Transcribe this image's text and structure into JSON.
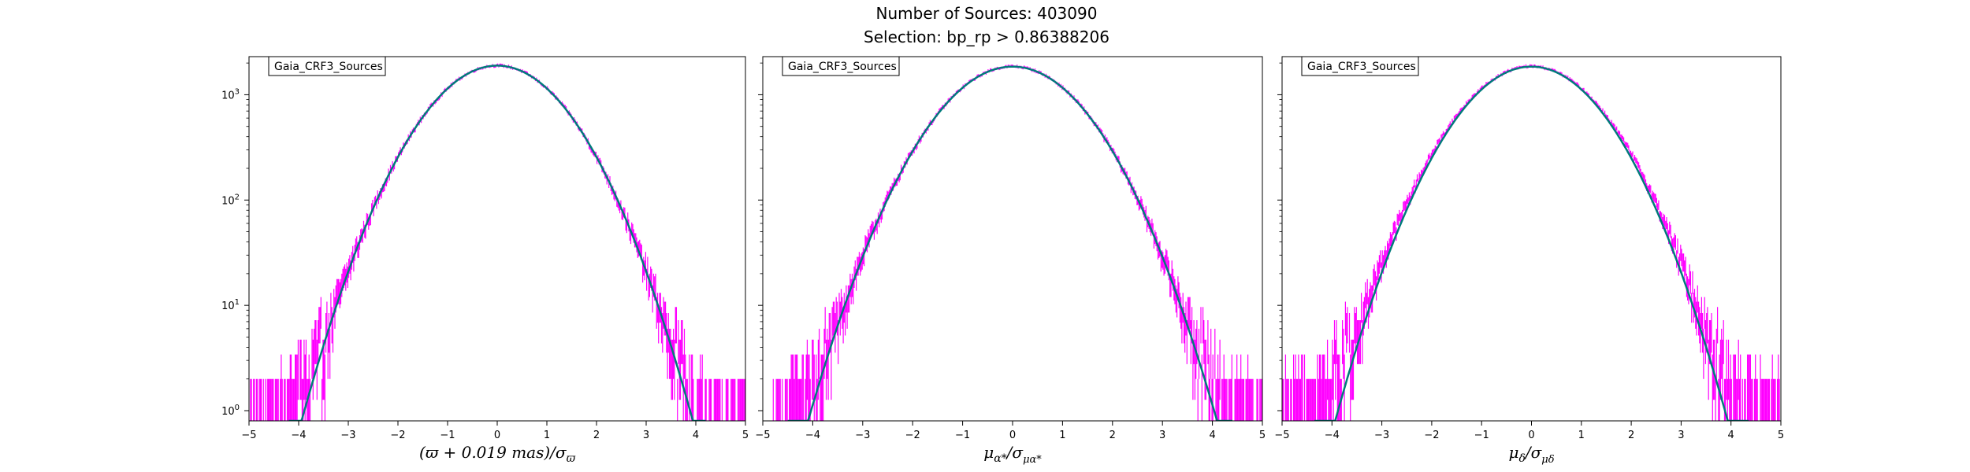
{
  "figure": {
    "title_line1": "Number of Sources: 403090",
    "title_line2": "Selection: bp_rp > 0.86388206"
  },
  "colors": {
    "histogram": "#ff00ff",
    "fit": "#007b7b",
    "axes": "#000000"
  },
  "chart_data": [
    {
      "type": "line",
      "legend": "Gaia_CRF3_Sources",
      "xlabel": "(ϖ + 0.019 mas)/σϖ",
      "xlabel_parts": {
        "main": "(ϖ + 0.019 mas)/σ",
        "sub": "ϖ"
      },
      "xlim": [
        -5,
        5
      ],
      "ylim": [
        0.8,
        2300
      ],
      "yscale": "log",
      "xticks": [
        -5,
        -4,
        -3,
        -2,
        -1,
        0,
        1,
        2,
        3,
        4,
        5
      ],
      "yticks": [
        {
          "value": 1,
          "label": "10",
          "exp": "0"
        },
        {
          "value": 10,
          "label": "10",
          "exp": "1"
        },
        {
          "value": 100,
          "label": "10",
          "exp": "2"
        },
        {
          "value": 1000,
          "label": "10",
          "exp": "3"
        }
      ],
      "series": [
        {
          "kind": "fit",
          "peak": 1890,
          "sigma": 1.0,
          "x_range": [
            -4.2,
            4.2
          ]
        },
        {
          "kind": "histogram",
          "peak": 1890,
          "sigma": 1.0,
          "bin_width": 0.02,
          "tail_excess": 0.15,
          "x_range": [
            -5,
            5
          ]
        }
      ]
    },
    {
      "type": "line",
      "legend": "Gaia_CRF3_Sources",
      "xlabel": "μα*/σμα*",
      "xlabel_parts": {
        "main": "μ",
        "main_sub": "α*",
        "sep": "/σ",
        "sub": "μα*"
      },
      "xlim": [
        -5,
        5
      ],
      "ylim": [
        0.8,
        2300
      ],
      "yscale": "log",
      "xticks": [
        -5,
        -4,
        -3,
        -2,
        -1,
        0,
        1,
        2,
        3,
        4,
        5
      ],
      "series": [
        {
          "kind": "fit",
          "peak": 1850,
          "sigma": 1.04,
          "x_range": [
            -4.5,
            4.4
          ]
        },
        {
          "kind": "histogram",
          "peak": 1850,
          "sigma": 1.04,
          "bin_width": 0.02,
          "tail_excess": 0.35,
          "x_range": [
            -4.8,
            5
          ]
        }
      ]
    },
    {
      "type": "line",
      "legend": "Gaia_CRF3_Sources",
      "xlabel": "μδ/σμδ",
      "xlabel_parts": {
        "main": "μ",
        "main_sub": "δ",
        "sep": "/σ",
        "sub": "μδ"
      },
      "xlim": [
        -5,
        5
      ],
      "ylim": [
        0.8,
        2300
      ],
      "yscale": "log",
      "xticks": [
        -5,
        -4,
        -3,
        -2,
        -1,
        0,
        1,
        2,
        3,
        4,
        5
      ],
      "series": [
        {
          "kind": "fit",
          "peak": 1850,
          "sigma": 1.0,
          "x_range": [
            -4.35,
            4.35
          ]
        },
        {
          "kind": "histogram",
          "peak": 1850,
          "sigma": 1.02,
          "bin_width": 0.02,
          "tail_excess": 0.55,
          "x_range": [
            -5,
            5
          ]
        }
      ]
    }
  ]
}
